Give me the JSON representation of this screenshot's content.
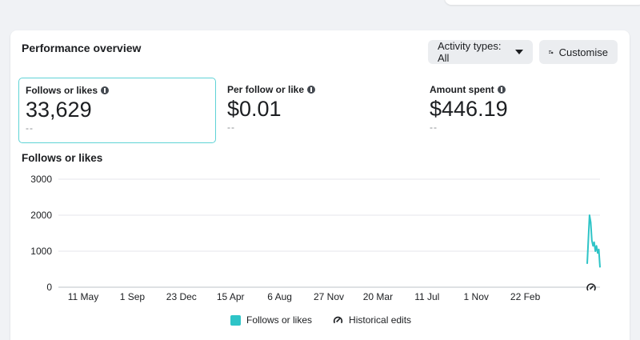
{
  "card": {
    "title": "Performance overview",
    "activity_button": "Activity types: All",
    "customise_button": "Customise"
  },
  "metrics": [
    {
      "label": "Follows or likes",
      "value": "33,629",
      "sub": "--"
    },
    {
      "label": "Per follow or like",
      "value": "$0.01",
      "sub": "--"
    },
    {
      "label": "Amount spent",
      "value": "$446.19",
      "sub": "--"
    }
  ],
  "chart_data": {
    "type": "line",
    "title": "Follows or likes",
    "xlabel": "",
    "ylabel": "",
    "ylim": [
      0,
      3000
    ],
    "y_ticks": [
      0,
      1000,
      2000,
      3000
    ],
    "y_tick_labels": [
      "0",
      "1000",
      "2000",
      "3000"
    ],
    "x_tick_labels": [
      "11 May",
      "1 Sep",
      "23 Dec",
      "15 Apr",
      "6 Aug",
      "27 Nov",
      "20 Mar",
      "11 Jul",
      "1 Nov",
      "22 Feb"
    ],
    "grid": true,
    "color": "#2ec4c7",
    "series": [
      {
        "name": "Follows or likes",
        "values": [
          650,
          1350,
          2000,
          1800,
          1300,
          1150,
          1250,
          1000,
          1150,
          950,
          1050,
          550
        ]
      }
    ],
    "legend": [
      "Follows or likes",
      "Historical edits"
    ],
    "legend_position": "bottom"
  }
}
